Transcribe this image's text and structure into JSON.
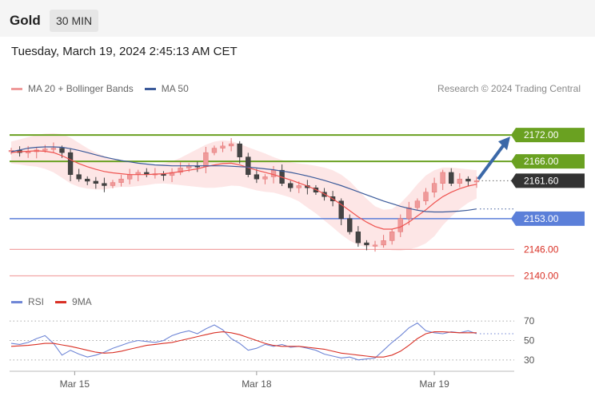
{
  "header": {
    "title": "Gold",
    "timeframe": "30 MIN"
  },
  "timestamp": "Tuesday, March 19, 2024 2:45:13 AM CET",
  "legend_main": [
    {
      "label": "MA 20 + Bollinger Bands",
      "color": "#ef9a9a"
    },
    {
      "label": "MA 50",
      "color": "#3b5a9a"
    }
  ],
  "credit": "Research © 2024 Trading Central",
  "legend_rsi": [
    {
      "label": "RSI",
      "color": "#6f86d6"
    },
    {
      "label": "9MA",
      "color": "#d93025"
    }
  ],
  "colors": {
    "resistance": "#6aa121",
    "support": "#5b7fd9",
    "weak": "#f1a5a5",
    "current_box": "#333333",
    "arrow": "#3b68a8",
    "up_candle": "#ef9a9a",
    "down_candle": "#444444"
  },
  "chart_data": [
    {
      "type": "candlestick",
      "title": "Gold",
      "ylim": [
        2137,
        2180
      ],
      "price_levels": [
        {
          "value": 2172.0,
          "label": "2172.00",
          "kind": "resistance"
        },
        {
          "value": 2166.0,
          "label": "2166.00",
          "kind": "resistance"
        },
        {
          "value": 2161.6,
          "label": "2161.60",
          "kind": "current"
        },
        {
          "value": 2153.0,
          "label": "2153.00",
          "kind": "support"
        },
        {
          "value": 2146.0,
          "label": "2146.00",
          "kind": "weak"
        },
        {
          "value": 2140.0,
          "label": "2140.00",
          "kind": "weak"
        }
      ],
      "x_ticks": [
        "Mar 15",
        "Mar 18",
        "Mar 19"
      ],
      "x_tick_positions": [
        7.5,
        29,
        50
      ],
      "n_bars": 56,
      "close": [
        2168.5,
        2168,
        2168.2,
        2168.6,
        2168.8,
        2169,
        2168,
        2163,
        2162,
        2161.5,
        2161,
        2160.5,
        2161.2,
        2162,
        2163,
        2163.5,
        2163,
        2163.2,
        2162.8,
        2163.5,
        2164.5,
        2165,
        2164.8,
        2168,
        2169,
        2169.5,
        2170,
        2167,
        2163,
        2162,
        2162.5,
        2164,
        2161,
        2160,
        2160.5,
        2160,
        2159,
        2158,
        2157,
        2153,
        2150,
        2147.5,
        2147,
        2147,
        2148,
        2150,
        2153,
        2155.5,
        2157,
        2159,
        2161,
        2163.5,
        2161,
        2162,
        2161.5,
        2161.6
      ],
      "ma20": [
        2168,
        2168.2,
        2168.3,
        2168.4,
        2168.3,
        2168,
        2167.3,
        2166.4,
        2165.5,
        2164.8,
        2164.2,
        2163.7,
        2163.4,
        2163.2,
        2163,
        2163,
        2163,
        2163.1,
        2163.2,
        2163.4,
        2163.7,
        2164,
        2164.3,
        2164.8,
        2165.2,
        2165.5,
        2165.6,
        2165.2,
        2164.6,
        2164,
        2163.5,
        2163,
        2162.4,
        2161.8,
        2161.1,
        2160.4,
        2159.6,
        2158.6,
        2157.5,
        2156.2,
        2154.8,
        2153.4,
        2152.2,
        2151.2,
        2150.6,
        2150.6,
        2151.1,
        2152.2,
        2153.6,
        2155,
        2156.6,
        2158,
        2159,
        2159.8,
        2160.4,
        2160.8
      ],
      "bb_upper": [
        2170.5,
        2171,
        2171.5,
        2172,
        2172.3,
        2172.4,
        2172.2,
        2171.4,
        2170.2,
        2169,
        2168,
        2167.2,
        2166.6,
        2166.2,
        2165.8,
        2165.6,
        2165.4,
        2165.3,
        2165.5,
        2166,
        2166.8,
        2167.8,
        2168.8,
        2169.8,
        2170.5,
        2170.8,
        2170.6,
        2170,
        2169.2,
        2168.5,
        2167.8,
        2167,
        2166.3,
        2165.8,
        2165.5,
        2165.3,
        2165,
        2164.6,
        2164,
        2163,
        2161.5,
        2159.5,
        2157.5,
        2155.8,
        2155,
        2155.2,
        2156.5,
        2158.5,
        2160.8,
        2162.8,
        2164,
        2164.6,
        2164.6,
        2164.4,
        2164.2,
        2164
      ],
      "bb_lower": [
        2165.5,
        2165.3,
        2165,
        2164.8,
        2164.3,
        2163.5,
        2162.3,
        2161,
        2160.2,
        2159.8,
        2159.6,
        2159.6,
        2160,
        2160.2,
        2160.2,
        2160.4,
        2160.6,
        2160.9,
        2161,
        2160.8,
        2160.6,
        2160.4,
        2160.2,
        2160,
        2160,
        2160.2,
        2160.5,
        2160.4,
        2159.9,
        2159.4,
        2159.1,
        2158.9,
        2158.4,
        2157.8,
        2156.9,
        2155.5,
        2154.2,
        2152.6,
        2151,
        2149.4,
        2148,
        2147,
        2146.5,
        2146.5,
        2146.2,
        2145.8,
        2145.7,
        2146,
        2146.5,
        2147.4,
        2149,
        2151.5,
        2153.5,
        2155.2,
        2156.6,
        2157.6
      ],
      "ma50": [
        2168.2,
        2168.6,
        2169,
        2169.2,
        2169.3,
        2169.3,
        2169.2,
        2168.9,
        2168.5,
        2168,
        2167.5,
        2167,
        2166.6,
        2166.2,
        2165.9,
        2165.6,
        2165.4,
        2165.2,
        2165.1,
        2165,
        2165,
        2165,
        2165,
        2165,
        2165,
        2165,
        2164.9,
        2164.8,
        2164.7,
        2164.5,
        2164.3,
        2164.1,
        2163.8,
        2163.5,
        2163.1,
        2162.7,
        2162.2,
        2161.7,
        2161.1,
        2160.5,
        2159.8,
        2159.1,
        2158.4,
        2157.7,
        2157,
        2156.4,
        2155.8,
        2155.3,
        2154.9,
        2154.6,
        2154.5,
        2154.5,
        2154.6,
        2154.7,
        2154.9,
        2155.2
      ],
      "projection": {
        "from": 2161.6,
        "to": 2172.0
      }
    },
    {
      "type": "line",
      "title": "RSI",
      "ylim": [
        20,
        80
      ],
      "y_ticks": [
        30,
        50,
        70
      ],
      "series": [
        {
          "name": "RSI",
          "values": [
            47,
            46,
            48,
            52,
            55,
            47,
            35,
            40,
            36,
            33,
            35,
            38,
            42,
            45,
            48,
            50,
            49,
            48,
            50,
            55,
            58,
            60,
            57,
            62,
            66,
            61,
            52,
            47,
            40,
            42,
            46,
            44,
            46,
            43,
            44,
            42,
            40,
            36,
            34,
            32,
            33,
            30,
            31,
            32,
            40,
            48,
            55,
            63,
            68,
            60,
            58,
            57,
            59,
            58,
            60,
            57
          ]
        },
        {
          "name": "9MA",
          "values": [
            44,
            44.5,
            45,
            46,
            47,
            47,
            45.5,
            44,
            42,
            40,
            38,
            37,
            37.5,
            39,
            41,
            43,
            45,
            46,
            47,
            48,
            50,
            52,
            54,
            56,
            58,
            59,
            58,
            56,
            53,
            50,
            47,
            45,
            44,
            44,
            44,
            43,
            42,
            41,
            39,
            37,
            36,
            35,
            34,
            33,
            33,
            35,
            39,
            45,
            52,
            57,
            59,
            59,
            58.5,
            58,
            58,
            58
          ]
        }
      ]
    }
  ]
}
